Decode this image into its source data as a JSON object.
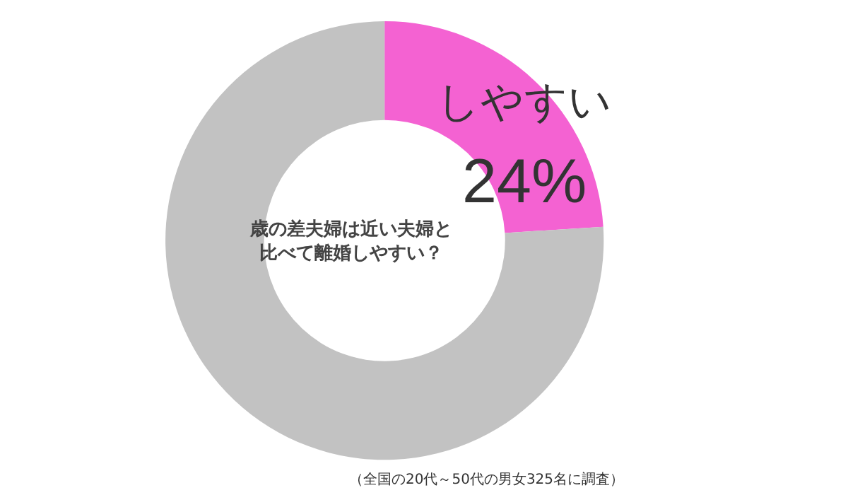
{
  "chart_data": {
    "type": "donut",
    "title": "歳の差夫婦は近い夫婦と比べて離婚しやすい？",
    "categories": [
      "しやすい",
      null
    ],
    "values": [
      24,
      76
    ],
    "value_labels": [
      "24%",
      null
    ],
    "colors": [
      "#f462d2",
      "#c2c2c2"
    ],
    "legend": false,
    "annotations": [
      "（全国の20代～50代の男女325名に調査）"
    ]
  }
}
